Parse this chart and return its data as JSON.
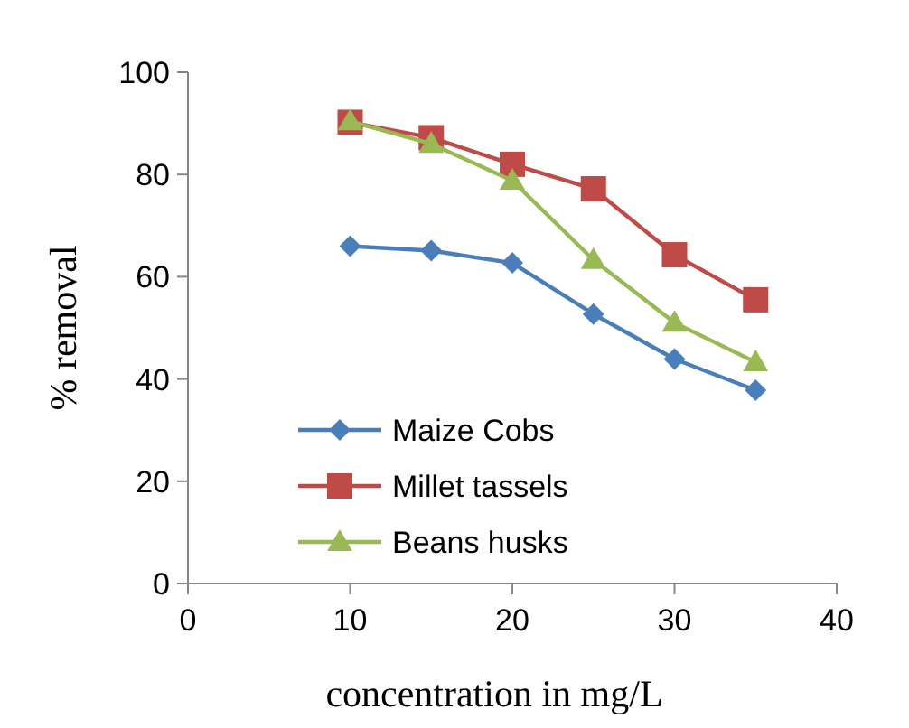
{
  "chart_data": {
    "type": "line",
    "xlabel": "concentration in mg/L",
    "ylabel": "% removal",
    "x": [
      10,
      15,
      20,
      25,
      30,
      35
    ],
    "xlim": [
      0,
      40
    ],
    "xticks": [
      0,
      10,
      20,
      30,
      40
    ],
    "ylim": [
      0,
      100
    ],
    "yticks": [
      0,
      20,
      40,
      60,
      80,
      100
    ],
    "grid": false,
    "legend": "bottom",
    "series": [
      {
        "name": "Maize Cobs",
        "color": "#4a7ebb",
        "marker": "diamond",
        "values": [
          66,
          65.1,
          62.7,
          52.7,
          43.9,
          37.8
        ]
      },
      {
        "name": "Millet tassels",
        "color": "#be4b48",
        "marker": "square",
        "values": [
          90.2,
          87.2,
          82,
          77.2,
          64.3,
          55.5
        ]
      },
      {
        "name": "Beans husks",
        "color": "#98b954",
        "marker": "triangle",
        "values": [
          90.4,
          86,
          78.8,
          63.3,
          51,
          43.3
        ]
      }
    ]
  }
}
